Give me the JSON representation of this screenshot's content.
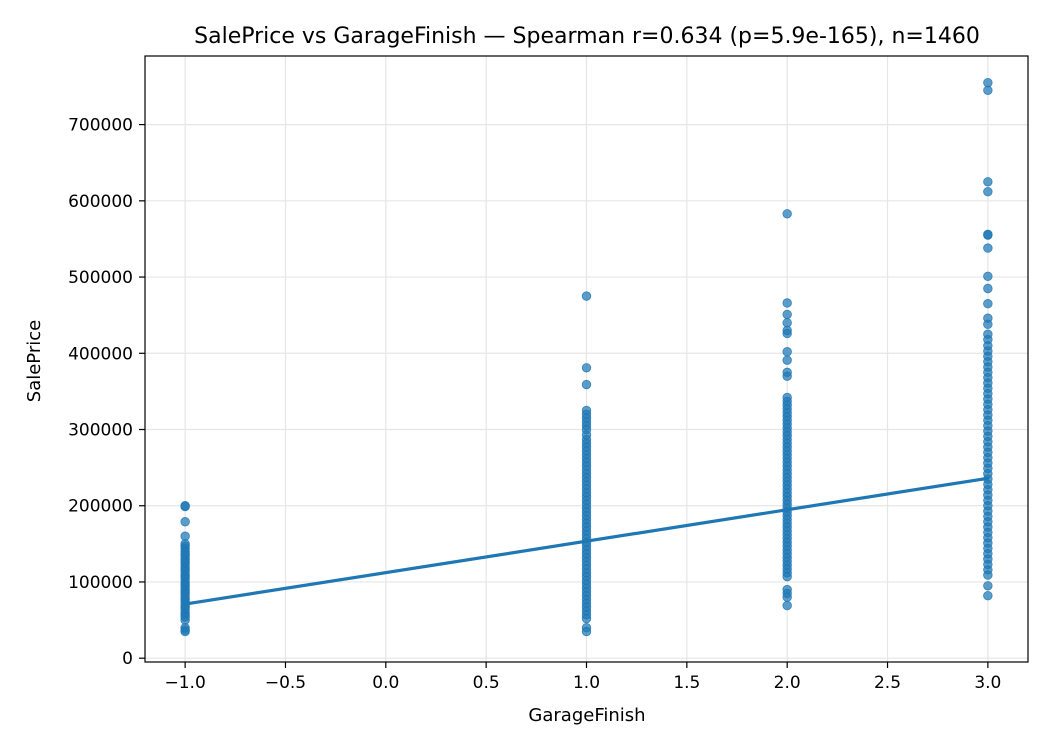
{
  "chart_data": {
    "type": "scatter",
    "title": "SalePrice vs GarageFinish — Spearman r=0.634 (p=5.9e-165), n=1460",
    "xlabel": "GarageFinish",
    "ylabel": "SalePrice",
    "xlim": [
      -1.2,
      3.2
    ],
    "ylim": [
      -5000,
      790000
    ],
    "grid": true,
    "x_ticks": [
      -1.0,
      -0.5,
      0.0,
      0.5,
      1.0,
      1.5,
      2.0,
      2.5,
      3.0
    ],
    "x_tick_labels": [
      "−1.0",
      "−0.5",
      "0.0",
      "0.5",
      "1.0",
      "1.5",
      "2.0",
      "2.5",
      "3.0"
    ],
    "y_ticks": [
      0,
      100000,
      200000,
      300000,
      400000,
      500000,
      600000,
      700000
    ],
    "y_tick_labels": [
      "0",
      "100000",
      "200000",
      "300000",
      "400000",
      "500000",
      "600000",
      "700000"
    ],
    "colors": {
      "points": "#1f77b4",
      "line": "#1f77b4",
      "grid": "#e6e6e6"
    },
    "series": [
      {
        "x": -1,
        "values": [
          200000,
          199000,
          179000,
          160000,
          150000,
          147000,
          144000,
          140000,
          137000,
          134000,
          130000,
          127000,
          124000,
          120000,
          117000,
          114000,
          110000,
          107000,
          104000,
          100000,
          97000,
          94000,
          90000,
          87000,
          84000,
          80000,
          77000,
          74000,
          70000,
          67000,
          64000,
          60000,
          57000,
          54000,
          50000,
          40000,
          37000,
          35000
        ]
      },
      {
        "x": 1,
        "values": [
          475000,
          381000,
          359000,
          325000,
          320000,
          315000,
          310000,
          305000,
          300000,
          293000,
          287000,
          282000,
          277000,
          272000,
          267000,
          262000,
          257000,
          252000,
          247000,
          242000,
          237000,
          232000,
          227000,
          222000,
          217000,
          212000,
          207000,
          202000,
          197000,
          192000,
          187000,
          182000,
          177000,
          172000,
          167000,
          162000,
          157000,
          152000,
          147000,
          142000,
          137000,
          132000,
          127000,
          122000,
          117000,
          112000,
          107000,
          102000,
          97000,
          92000,
          87000,
          82000,
          77000,
          72000,
          67000,
          62000,
          57000,
          52000,
          40000,
          35000
        ]
      },
      {
        "x": 2,
        "values": [
          583000,
          466000,
          451000,
          440000,
          430000,
          426000,
          402000,
          391000,
          375000,
          370000,
          342000,
          337000,
          332000,
          327000,
          322000,
          317000,
          312000,
          307000,
          302000,
          297000,
          292000,
          287000,
          282000,
          277000,
          272000,
          267000,
          262000,
          257000,
          252000,
          247000,
          242000,
          237000,
          232000,
          227000,
          222000,
          217000,
          212000,
          207000,
          202000,
          197000,
          192000,
          187000,
          182000,
          177000,
          172000,
          167000,
          162000,
          157000,
          152000,
          147000,
          142000,
          137000,
          132000,
          127000,
          122000,
          117000,
          112000,
          107000,
          90000,
          85000,
          80000,
          69000
        ]
      },
      {
        "x": 3,
        "values": [
          755000,
          745000,
          625000,
          612000,
          556000,
          555000,
          538000,
          501000,
          485000,
          465000,
          446000,
          438000,
          425000,
          418000,
          410000,
          403000,
          396000,
          389000,
          382000,
          375000,
          368000,
          361000,
          354000,
          347000,
          340000,
          333000,
          326000,
          319000,
          312000,
          305000,
          298000,
          291000,
          284000,
          277000,
          270000,
          263000,
          256000,
          249000,
          242000,
          235000,
          228000,
          221000,
          214000,
          207000,
          200000,
          193000,
          186000,
          179000,
          172000,
          165000,
          158000,
          151000,
          144000,
          137000,
          130000,
          123000,
          116000,
          109000,
          95000,
          82000
        ]
      }
    ],
    "trendline": {
      "x": [
        -1,
        3
      ],
      "y": [
        71000,
        236000
      ]
    }
  }
}
